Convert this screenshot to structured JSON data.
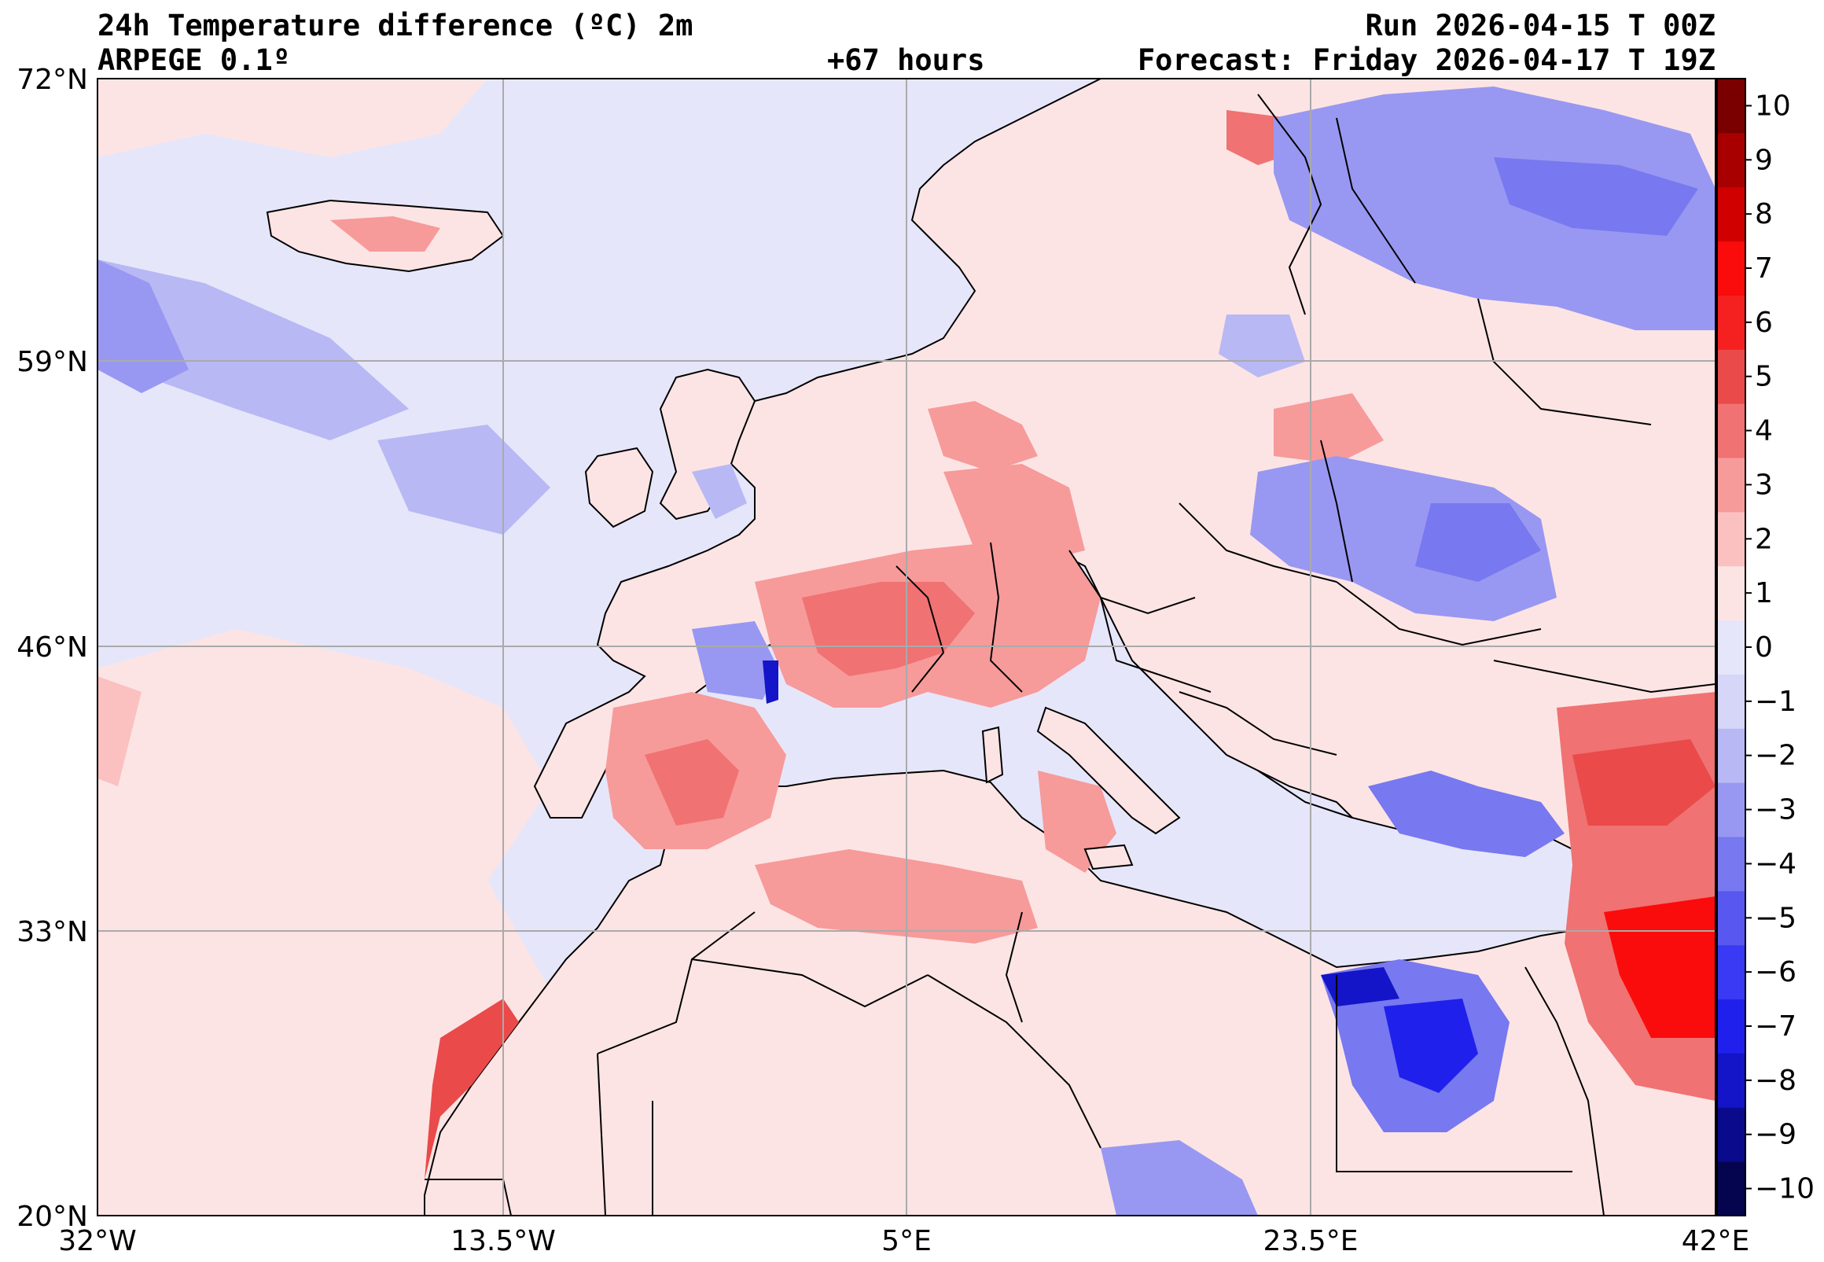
{
  "header": {
    "title": "24h Temperature difference (ºC) 2m",
    "model": "ARPEGE 0.1º",
    "lead_time": "+67 hours",
    "run": "Run 2026-04-15 T 00Z",
    "forecast": "Forecast: Friday 2026-04-17 T 19Z"
  },
  "map": {
    "lat_labels": [
      "72°N",
      "59°N",
      "46°N",
      "33°N",
      "20°N"
    ],
    "lon_labels": [
      "32°W",
      "13.5°W",
      "5°E",
      "23.5°E",
      "42°E"
    ],
    "extent": {
      "lon": [
        -32,
        42
      ],
      "lat": [
        20,
        72
      ]
    },
    "gridlines": true
  },
  "colorbar": {
    "tick_labels": [
      "10",
      "9",
      "8",
      "7",
      "6",
      "5",
      "4",
      "3",
      "2",
      "1",
      "0",
      "−1",
      "−2",
      "−3",
      "−4",
      "−5",
      "−6",
      "−7",
      "−8",
      "−9",
      "−10"
    ],
    "colors": [
      "#05054f",
      "#0a0a8c",
      "#1414c8",
      "#2020ec",
      "#3a3af5",
      "#5858f0",
      "#7878f0",
      "#9898f2",
      "#b8b8f5",
      "#d6d6f8",
      "#e6e6fa",
      "#fde4e4",
      "#fbc0c0",
      "#f79a9a",
      "#f07272",
      "#ea4a4a",
      "#f52020",
      "#fa0c0c",
      "#d00000",
      "#a80000",
      "#7a0000"
    ]
  },
  "colors": {
    "land_neutral": "#fde4e4",
    "sea_neutral": "#e6e6fa",
    "warm": "#f07272",
    "cold": "#6060ec",
    "coast": "#000000",
    "grid": "#aaaaaa"
  }
}
